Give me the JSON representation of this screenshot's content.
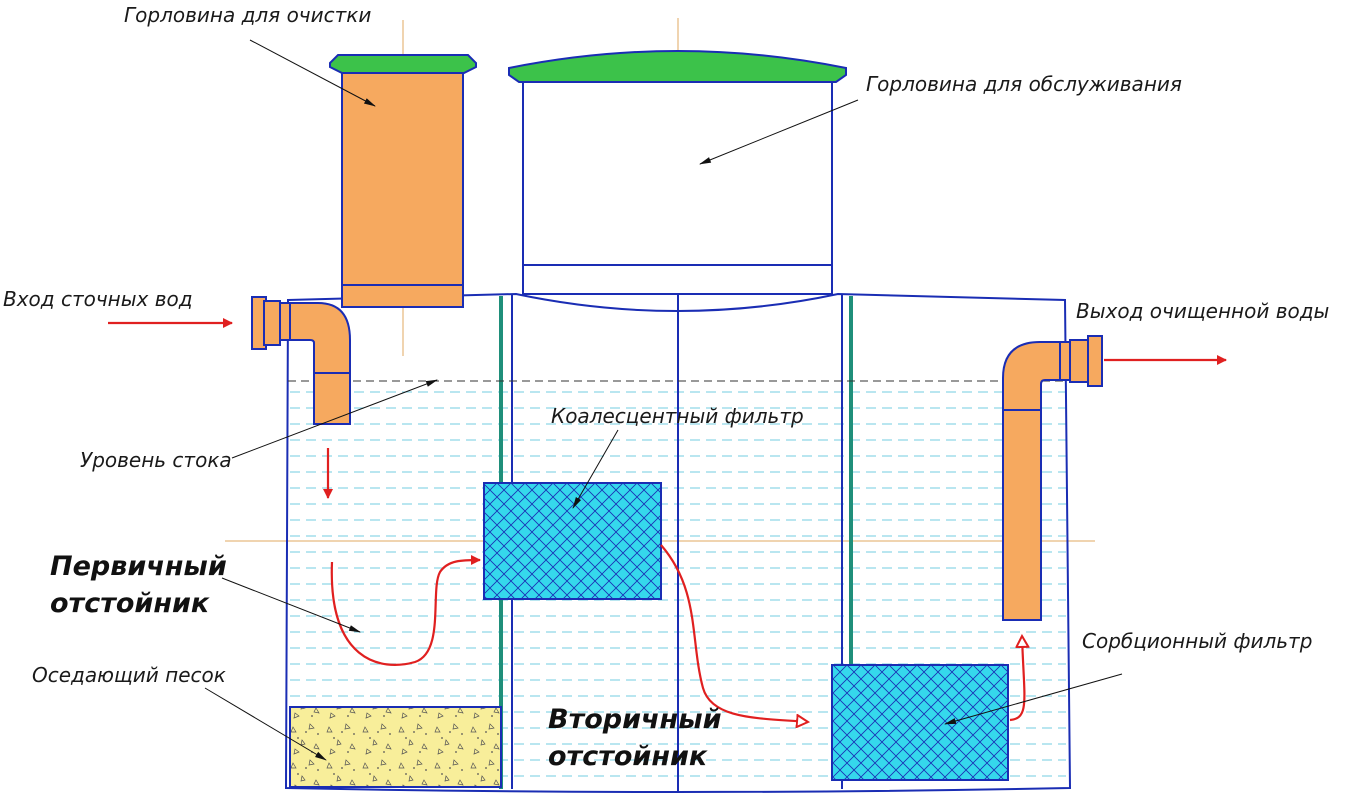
{
  "labels": {
    "cleaning_neck": "Горловина для очистки",
    "service_neck": "Горловина для обслуживания",
    "inlet": "Вход сточных вод",
    "outlet": "Выход очищенной воды",
    "flow_level": "Уровень стока",
    "coalescent_filter": "Коалесцентный фильтр",
    "primary_settler_line1": "Первичный",
    "primary_settler_line2": "отстойник",
    "settling_sand": "Оседающий песок",
    "sorption_filter": "Сорбционный фильтр",
    "secondary_settler_line1": "Вторичный",
    "secondary_settler_line2": "отстойник"
  },
  "colors": {
    "outline": "#1a2db4",
    "pipe_fill": "#f6a95f",
    "lid_fill": "#3cc24a",
    "water_line": "#8fd6e6",
    "filter_fill": "#35d8ec",
    "sand_fill": "#f8ee9a",
    "partition": "#1f8f7a",
    "flow_arrow": "#e02020",
    "centerline": "#e0a860"
  }
}
